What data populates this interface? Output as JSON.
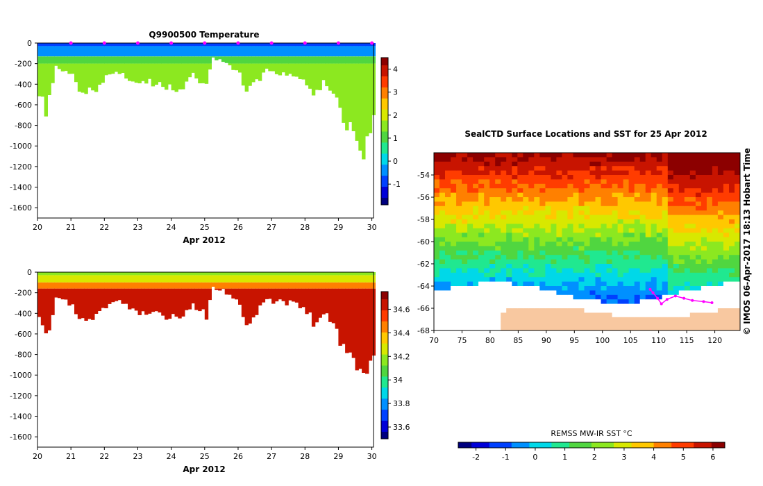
{
  "colors": {
    "jet": [
      "#00007f",
      "#0000d8",
      "#0040ff",
      "#0090ff",
      "#00d8e8",
      "#20e890",
      "#50d640",
      "#8ce820",
      "#d8e800",
      "#ffc800",
      "#ff8000",
      "#ff3c00",
      "#c81400",
      "#8c0000"
    ],
    "land": "#f8c8a0",
    "track": "#ff00ff"
  },
  "chart_data": [
    {
      "type": "heatmap",
      "title": "Q9900500  Temperature",
      "xlabel": "Apr 2012",
      "ylabel": "",
      "x_ticks": [
        "20",
        "21",
        "22",
        "23",
        "24",
        "25",
        "26",
        "27",
        "28",
        "29",
        "30"
      ],
      "y_ticks": [
        "0",
        "-200",
        "-400",
        "-600",
        "-800",
        "-1000",
        "-1200",
        "-1400",
        "-1600"
      ],
      "xlim": [
        20,
        30.05
      ],
      "ylim": [
        -1700,
        0
      ],
      "colorbar": {
        "ticks": [
          "4",
          "3",
          "2",
          "1",
          "0",
          "-1"
        ],
        "range": [
          -1.9,
          4.5
        ]
      },
      "profile_markers_days": [
        21,
        22,
        23,
        24,
        25,
        26,
        27,
        28,
        29,
        30
      ]
    },
    {
      "type": "heatmap",
      "title": "",
      "xlabel": "Apr 2012",
      "ylabel": "",
      "x_ticks": [
        "20",
        "21",
        "22",
        "23",
        "24",
        "25",
        "26",
        "27",
        "28",
        "29",
        "30"
      ],
      "y_ticks": [
        "0",
        "-200",
        "-400",
        "-600",
        "-800",
        "-1000",
        "-1200",
        "-1400",
        "-1600"
      ],
      "xlim": [
        20,
        30.05
      ],
      "ylim": [
        -1700,
        0
      ],
      "colorbar": {
        "ticks": [
          "34.6",
          "34.4",
          "34.2",
          "34",
          "33.8",
          "33.6"
        ],
        "range": [
          33.5,
          34.75
        ]
      }
    },
    {
      "type": "heatmap",
      "title": "SealCTD Surface Locations and SST for 25 Apr 2012",
      "xlabel": "",
      "ylabel": "",
      "x_ticks": [
        "70",
        "75",
        "80",
        "85",
        "90",
        "95",
        "100",
        "105",
        "110",
        "115",
        "120"
      ],
      "y_ticks": [
        "-54",
        "-56",
        "-58",
        "-60",
        "-62",
        "-64",
        "-66",
        "-68"
      ],
      "xlim": [
        70,
        124.5
      ],
      "ylim": [
        -68,
        -52
      ],
      "colorbar": {
        "label": "REMSS MW-IR SST °C",
        "ticks": [
          "-2",
          "-1",
          "0",
          "1",
          "2",
          "3",
          "4",
          "5",
          "6"
        ],
        "range": [
          -2.6,
          6.4
        ]
      },
      "side_text": "© IMOS 06-Apr-2017 18:13 Hobart Time"
    }
  ]
}
